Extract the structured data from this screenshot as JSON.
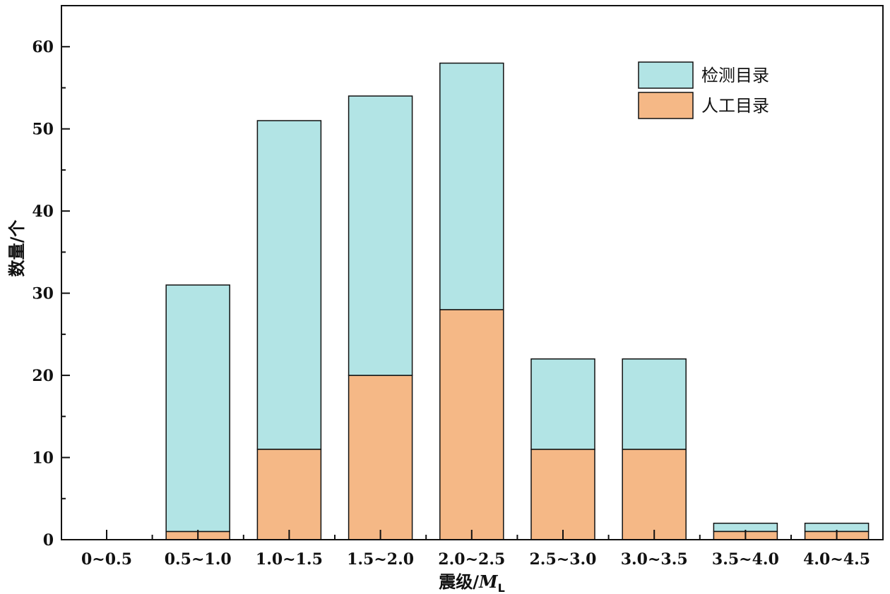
{
  "chart_data": {
    "type": "bar",
    "stacked": true,
    "categories": [
      "0~0.5",
      "0.5~1.0",
      "1.0~1.5",
      "1.5~2.0",
      "2.0~2.5",
      "2.5~3.0",
      "3.0~3.5",
      "3.5~4.0",
      "4.0~4.5"
    ],
    "series": [
      {
        "name": "人工目录",
        "color": "#f5b886",
        "values": [
          0,
          1,
          11,
          20,
          28,
          11,
          11,
          1,
          1
        ]
      },
      {
        "name": "检测目录",
        "color": "#b2e4e5",
        "values": [
          0,
          30,
          40,
          34,
          30,
          11,
          11,
          1,
          1
        ]
      }
    ],
    "totals": [
      0,
      31,
      51,
      54,
      58,
      22,
      22,
      2,
      2
    ],
    "xlabel": "震级/",
    "xlabel_symbol": "M",
    "xlabel_sub": "L",
    "ylabel": "数量/个",
    "ylim": [
      0,
      65
    ],
    "yticks": [
      0,
      10,
      20,
      30,
      40,
      50,
      60
    ],
    "ytick_labels": [
      "0",
      "10",
      "20",
      "30",
      "40",
      "50",
      "60"
    ],
    "grid": false,
    "legend_position": "top-right",
    "legend_order": [
      "检测目录",
      "人工目录"
    ]
  }
}
